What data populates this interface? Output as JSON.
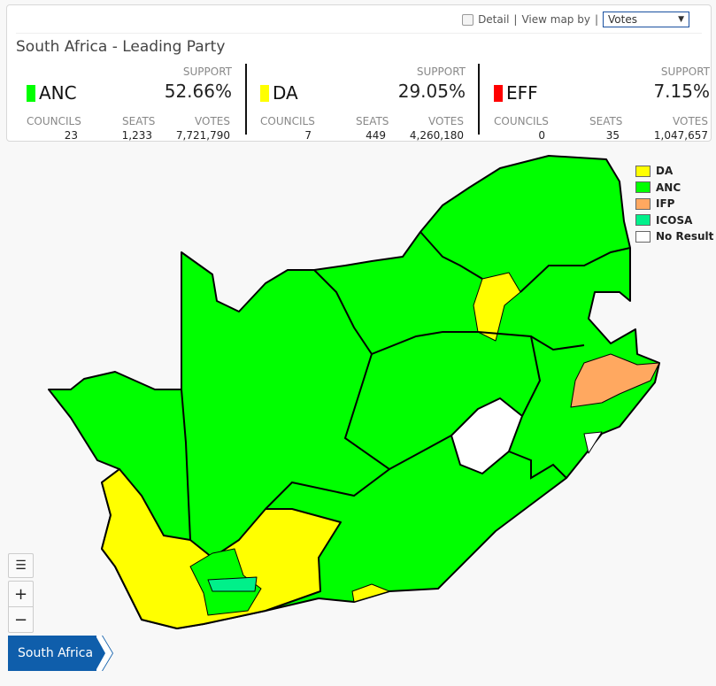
{
  "header": {
    "detail_label": "Detail",
    "view_map_by_label": "View map by",
    "separator": "|",
    "view_select_value": "Votes",
    "title": "South Africa - Leading Party"
  },
  "labels": {
    "support": "SUPPORT",
    "councils": "COUNCILS",
    "seats": "SEATS",
    "votes": "VOTES"
  },
  "parties": [
    {
      "name": "ANC",
      "color": "#00ff00",
      "support": "52.66%",
      "councils": "23",
      "seats": "1,233",
      "votes": "7,721,790"
    },
    {
      "name": "DA",
      "color": "#ffff00",
      "support": "29.05%",
      "councils": "7",
      "seats": "449",
      "votes": "4,260,180"
    },
    {
      "name": "EFF",
      "color": "#ff0000",
      "support": "7.15%",
      "councils": "0",
      "seats": "35",
      "votes": "1,047,657"
    }
  ],
  "legend": [
    {
      "label": "DA",
      "color": "#ffff00"
    },
    {
      "label": "ANC",
      "color": "#00ff00"
    },
    {
      "label": "IFP",
      "color": "#ffa860"
    },
    {
      "label": "ICOSA",
      "color": "#00f08a"
    },
    {
      "label": "No Result",
      "color": "#ffffff"
    }
  ],
  "controls": {
    "zoom_in": "+",
    "zoom_out": "−"
  },
  "breadcrumb": {
    "current": "South Africa"
  }
}
